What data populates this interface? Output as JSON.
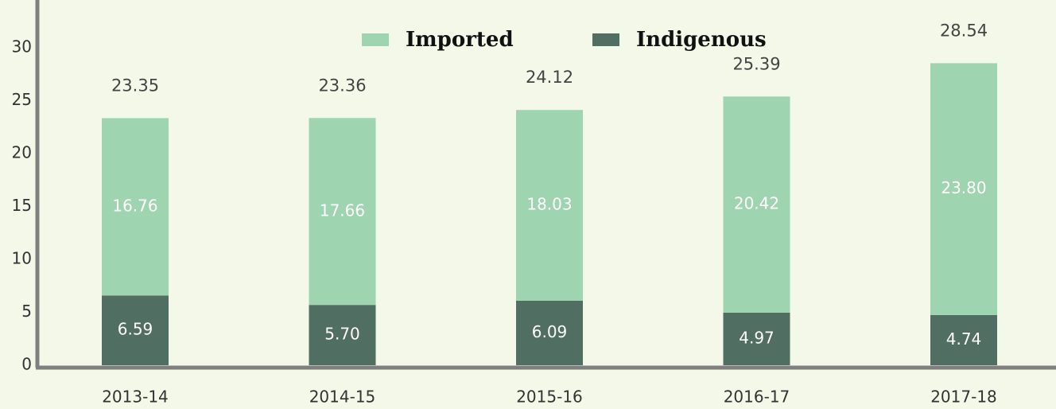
{
  "chart_data": {
    "type": "stacked_bar",
    "categories": [
      "2013-14",
      "2014-15",
      "2015-16",
      "2016-17",
      "2017-18"
    ],
    "series": [
      {
        "name": "Indigenous",
        "color": "#506e62",
        "values": [
          6.59,
          5.7,
          6.09,
          4.97,
          4.74
        ],
        "value_labels": [
          "6.59",
          "5.70",
          "6.09",
          "4.97",
          "4.74"
        ]
      },
      {
        "name": "Imported",
        "color": "#9fd4b0",
        "values": [
          16.76,
          17.66,
          18.03,
          20.42,
          23.8
        ],
        "value_labels": [
          "16.76",
          "17.66",
          "18.03",
          "20.42",
          "23.80"
        ]
      }
    ],
    "totals": [
      23.35,
      23.36,
      24.12,
      25.39,
      28.54
    ],
    "ylim": [
      0,
      30
    ],
    "yticks": [
      0,
      5,
      10,
      15,
      20,
      25,
      30
    ],
    "legend": "top"
  }
}
